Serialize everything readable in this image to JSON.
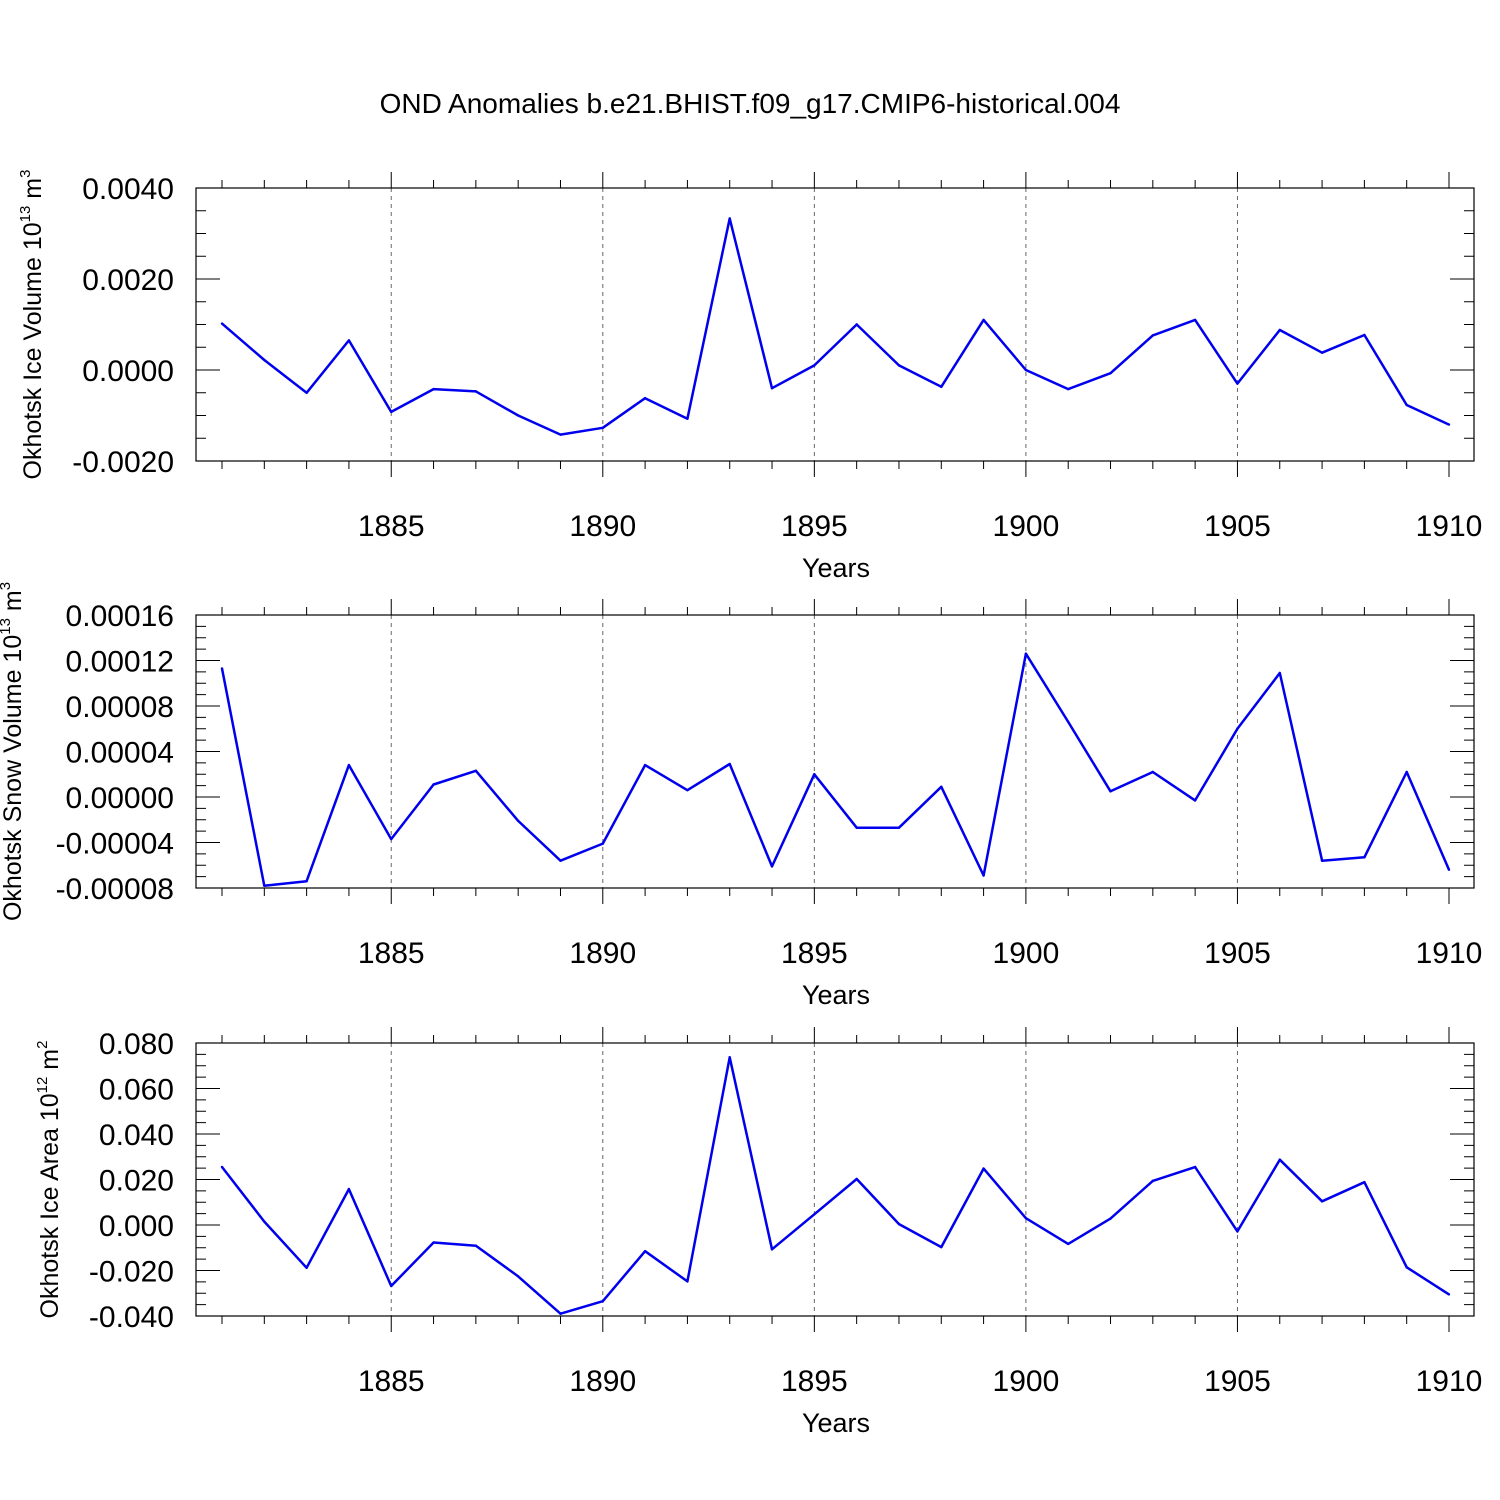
{
  "title": "OND Anomalies b.e21.BHIST.f09_g17.CMIP6-historical.004",
  "series_color": "#0000ee",
  "chart_data": [
    {
      "type": "line",
      "ylabel_main": "Okhotsk Ice Volume 10",
      "ylabel_sup": "13",
      "ylabel_unit": " m",
      "ylabel_unit_sup": "3",
      "xlabel": "Years",
      "xlim": [
        1881,
        1910
      ],
      "ylim": [
        -0.002,
        0.004
      ],
      "x_ticks": [
        1885,
        1890,
        1895,
        1900,
        1905,
        1910
      ],
      "y_ticks": [
        -0.002,
        0.0,
        0.002,
        0.004
      ],
      "y_tick_labels": [
        "-0.0020",
        "0.0000",
        "0.0020",
        "0.0040"
      ],
      "y_minor_step": 0.0005,
      "x": [
        1881,
        1882,
        1883,
        1884,
        1885,
        1886,
        1887,
        1888,
        1889,
        1890,
        1891,
        1892,
        1893,
        1894,
        1895,
        1896,
        1897,
        1898,
        1899,
        1900,
        1901,
        1902,
        1903,
        1904,
        1905,
        1906,
        1907,
        1908,
        1909,
        1910
      ],
      "values": [
        0.00102,
        0.00022,
        -0.0005,
        0.00065,
        -0.00092,
        -0.00042,
        -0.00047,
        -0.001,
        -0.00142,
        -0.00127,
        -0.00062,
        -0.00107,
        0.00333,
        -0.0004,
        0.0001,
        0.001,
        0.0001,
        -0.00037,
        0.0011,
        0.0,
        -0.00042,
        -7e-05,
        0.00076,
        0.0011,
        -0.0003,
        0.00088,
        0.00038,
        0.00077,
        -0.00077,
        -0.0012
      ]
    },
    {
      "type": "line",
      "ylabel_main": "Okhotsk Snow Volume 10",
      "ylabel_sup": "13",
      "ylabel_unit": " m",
      "ylabel_unit_sup": "3",
      "xlabel": "Years",
      "xlim": [
        1881,
        1910
      ],
      "ylim": [
        -8e-05,
        0.00016
      ],
      "x_ticks": [
        1885,
        1890,
        1895,
        1900,
        1905,
        1910
      ],
      "y_ticks": [
        -8e-05,
        -4e-05,
        0.0,
        4e-05,
        8e-05,
        0.00012,
        0.00016
      ],
      "y_tick_labels": [
        "-0.00008",
        "-0.00004",
        "0.00000",
        "0.00004",
        "0.00008",
        "0.00012",
        "0.00016"
      ],
      "y_minor_step": 1e-05,
      "x": [
        1881,
        1882,
        1883,
        1884,
        1885,
        1886,
        1887,
        1888,
        1889,
        1890,
        1891,
        1892,
        1893,
        1894,
        1895,
        1896,
        1897,
        1898,
        1899,
        1900,
        1901,
        1902,
        1903,
        1904,
        1905,
        1906,
        1907,
        1908,
        1909,
        1910
      ],
      "values": [
        0.000113,
        -7.8e-05,
        -7.4e-05,
        2.8e-05,
        -3.7e-05,
        1.1e-05,
        2.3e-05,
        -2.1e-05,
        -5.6e-05,
        -4.1e-05,
        2.8e-05,
        6e-06,
        2.9e-05,
        -6.1e-05,
        2e-05,
        -2.7e-05,
        -2.7e-05,
        9e-06,
        -6.9e-05,
        0.000126,
        6.6e-05,
        5e-06,
        2.2e-05,
        -3e-06,
        6e-05,
        0.000109,
        -5.6e-05,
        -5.3e-05,
        2.2e-05,
        -6.4e-05
      ]
    },
    {
      "type": "line",
      "ylabel_main": "Okhotsk Ice Area 10",
      "ylabel_sup": "12",
      "ylabel_unit": " m",
      "ylabel_unit_sup": "2",
      "xlabel": "Years",
      "xlim": [
        1881,
        1910
      ],
      "ylim": [
        -0.04,
        0.08
      ],
      "x_ticks": [
        1885,
        1890,
        1895,
        1900,
        1905,
        1910
      ],
      "y_ticks": [
        -0.04,
        -0.02,
        0.0,
        0.02,
        0.04,
        0.06,
        0.08
      ],
      "y_tick_labels": [
        "-0.040",
        "-0.020",
        "0.000",
        "0.020",
        "0.040",
        "0.060",
        "0.080"
      ],
      "y_minor_step": 0.005,
      "x": [
        1881,
        1882,
        1883,
        1884,
        1885,
        1886,
        1887,
        1888,
        1889,
        1890,
        1891,
        1892,
        1893,
        1894,
        1895,
        1896,
        1897,
        1898,
        1899,
        1900,
        1901,
        1902,
        1903,
        1904,
        1905,
        1906,
        1907,
        1908,
        1909,
        1910
      ],
      "values": [
        0.0255,
        0.0015,
        -0.0188,
        0.0158,
        -0.0268,
        -0.0077,
        -0.0091,
        -0.0226,
        -0.039,
        -0.0335,
        -0.0115,
        -0.0248,
        0.0737,
        -0.0107,
        0.0047,
        0.0202,
        0.0004,
        -0.0097,
        0.0248,
        0.003,
        -0.0083,
        0.0028,
        0.0194,
        0.0255,
        -0.0028,
        0.0287,
        0.0104,
        0.0188,
        -0.0186,
        -0.0305
      ]
    }
  ]
}
